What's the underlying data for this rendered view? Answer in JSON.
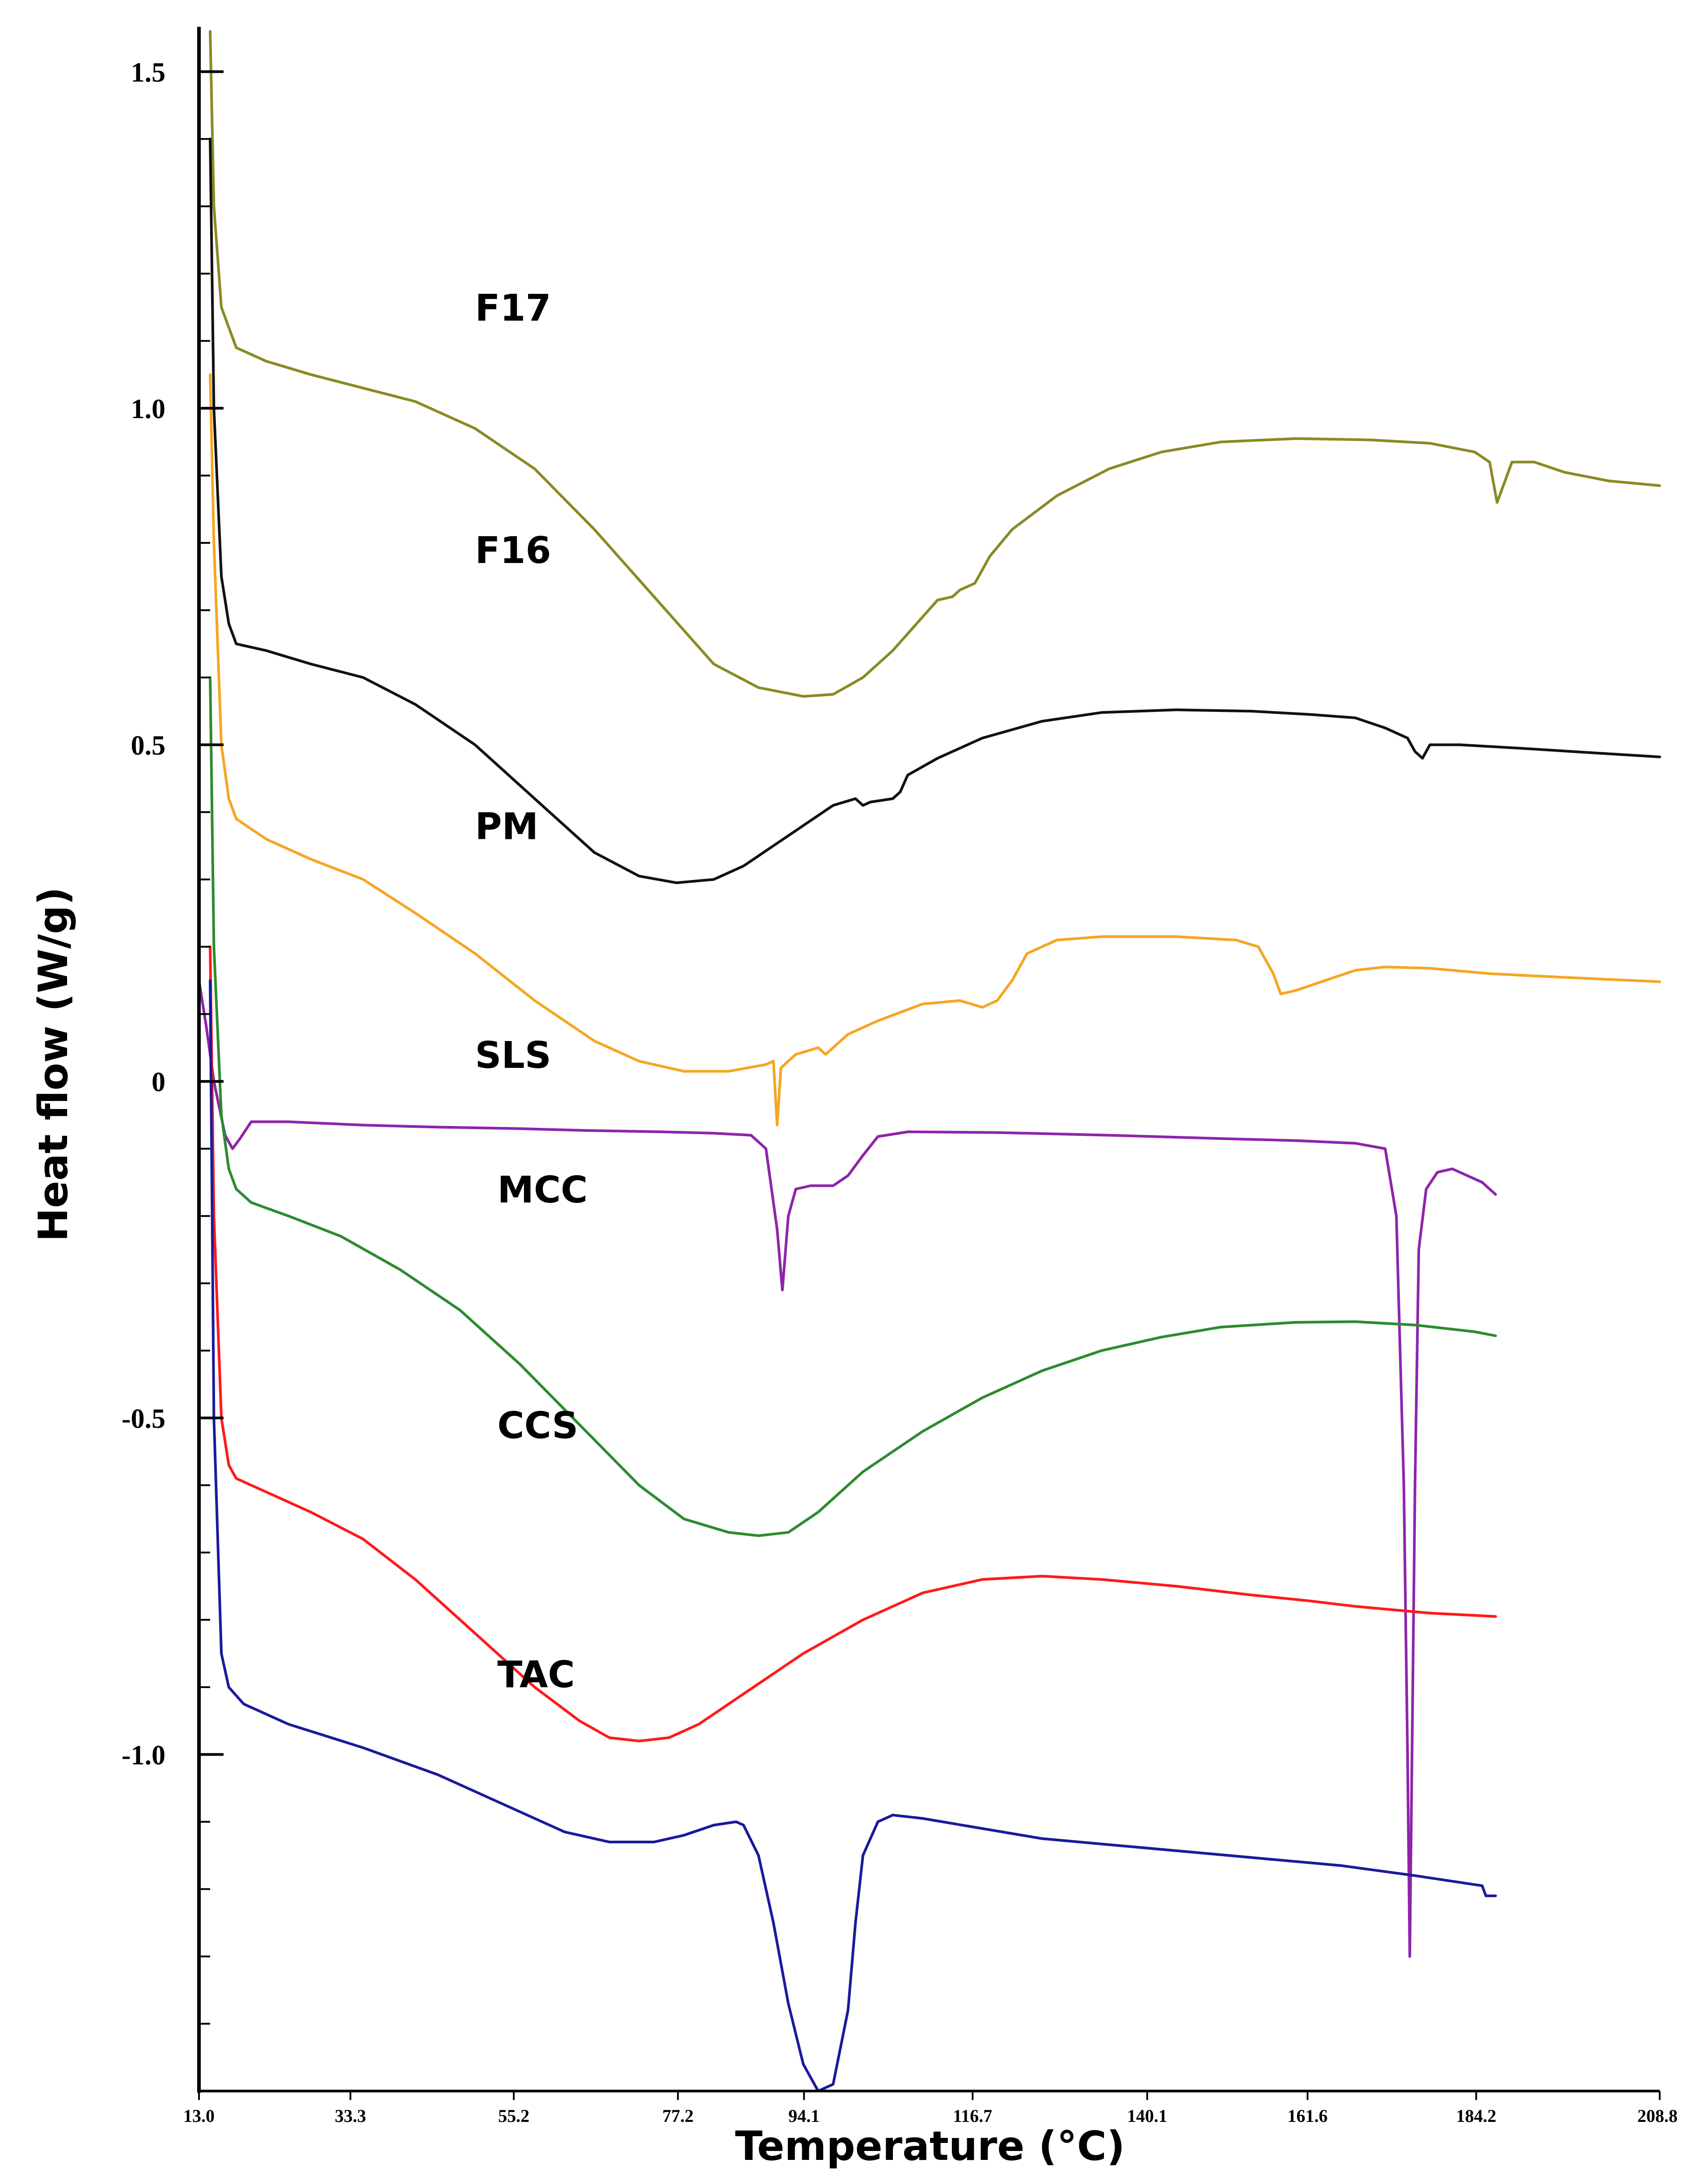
{
  "chart_data": {
    "type": "line",
    "title": "",
    "xlabel": "Temperature (°C)",
    "ylabel": "Heat flow (W/g)",
    "xlim": [
      13.0,
      208.8
    ],
    "ylim": [
      -1.5,
      1.56
    ],
    "x_ticks": [
      {
        "value": 13.0,
        "label": "13.0"
      },
      {
        "value": 33.3,
        "label": "33.3"
      },
      {
        "value": 55.2,
        "label": "55.2"
      },
      {
        "value": 77.2,
        "label": "77.2"
      },
      {
        "value": 94.1,
        "label": "94.1"
      },
      {
        "value": 116.7,
        "label": "116.7"
      },
      {
        "value": 140.1,
        "label": "140.1"
      },
      {
        "value": 161.6,
        "label": "161.6"
      },
      {
        "value": 184.2,
        "label": "184.2"
      },
      {
        "value": 208.8,
        "label": "208.8"
      }
    ],
    "y_ticks": [
      {
        "value": 1.5,
        "label": "1.5"
      },
      {
        "value": 1.0,
        "label": "1.0"
      },
      {
        "value": 0.5,
        "label": "0.5"
      },
      {
        "value": 0.0,
        "label": "0"
      },
      {
        "value": -0.5,
        "label": "-0.5"
      },
      {
        "value": -1.0,
        "label": "-1.0"
      }
    ],
    "y_minor_tick_step": 0.1,
    "series": [
      {
        "name": "F17",
        "color": "#8a8a24",
        "label_pos": {
          "x": 50,
          "y": 1.13
        },
        "points": [
          [
            14.5,
            1.56
          ],
          [
            15,
            1.3
          ],
          [
            16,
            1.15
          ],
          [
            18,
            1.09
          ],
          [
            22,
            1.07
          ],
          [
            28,
            1.05
          ],
          [
            35,
            1.03
          ],
          [
            42,
            1.01
          ],
          [
            50,
            0.97
          ],
          [
            58,
            0.91
          ],
          [
            66,
            0.82
          ],
          [
            74,
            0.72
          ],
          [
            82,
            0.62
          ],
          [
            88,
            0.585
          ],
          [
            94,
            0.572
          ],
          [
            98,
            0.575
          ],
          [
            102,
            0.6
          ],
          [
            106,
            0.64
          ],
          [
            110,
            0.69
          ],
          [
            112,
            0.715
          ],
          [
            114,
            0.72
          ],
          [
            115,
            0.73
          ],
          [
            117,
            0.74
          ],
          [
            119,
            0.78
          ],
          [
            122,
            0.82
          ],
          [
            128,
            0.87
          ],
          [
            135,
            0.91
          ],
          [
            142,
            0.935
          ],
          [
            150,
            0.95
          ],
          [
            160,
            0.955
          ],
          [
            170,
            0.953
          ],
          [
            178,
            0.948
          ],
          [
            184,
            0.935
          ],
          [
            186,
            0.92
          ],
          [
            187,
            0.86
          ],
          [
            188,
            0.89
          ],
          [
            189,
            0.92
          ],
          [
            192,
            0.92
          ],
          [
            196,
            0.905
          ],
          [
            202,
            0.892
          ],
          [
            208.8,
            0.885
          ]
        ]
      },
      {
        "name": "F16",
        "color": "#111111",
        "label_pos": {
          "x": 50,
          "y": 0.77
        },
        "points": [
          [
            14.5,
            1.4
          ],
          [
            15,
            1.0
          ],
          [
            16,
            0.75
          ],
          [
            17,
            0.68
          ],
          [
            18,
            0.65
          ],
          [
            22,
            0.64
          ],
          [
            28,
            0.62
          ],
          [
            35,
            0.6
          ],
          [
            42,
            0.56
          ],
          [
            50,
            0.5
          ],
          [
            58,
            0.42
          ],
          [
            66,
            0.34
          ],
          [
            72,
            0.305
          ],
          [
            77,
            0.295
          ],
          [
            82,
            0.3
          ],
          [
            86,
            0.32
          ],
          [
            90,
            0.35
          ],
          [
            94,
            0.38
          ],
          [
            98,
            0.41
          ],
          [
            101,
            0.42
          ],
          [
            102,
            0.41
          ],
          [
            103,
            0.415
          ],
          [
            106,
            0.42
          ],
          [
            107,
            0.43
          ],
          [
            108,
            0.455
          ],
          [
            112,
            0.48
          ],
          [
            118,
            0.51
          ],
          [
            126,
            0.535
          ],
          [
            134,
            0.548
          ],
          [
            144,
            0.552
          ],
          [
            154,
            0.55
          ],
          [
            162,
            0.545
          ],
          [
            168,
            0.54
          ],
          [
            172,
            0.525
          ],
          [
            175,
            0.51
          ],
          [
            176,
            0.49
          ],
          [
            177,
            0.48
          ],
          [
            178,
            0.5
          ],
          [
            182,
            0.5
          ],
          [
            190,
            0.495
          ],
          [
            200,
            0.488
          ],
          [
            208.8,
            0.482
          ]
        ]
      },
      {
        "name": "PM",
        "color": "#f5a623",
        "label_pos": {
          "x": 50,
          "y": 0.36
        },
        "points": [
          [
            14.5,
            1.05
          ],
          [
            15,
            0.8
          ],
          [
            16,
            0.5
          ],
          [
            17,
            0.42
          ],
          [
            18,
            0.39
          ],
          [
            22,
            0.36
          ],
          [
            28,
            0.33
          ],
          [
            35,
            0.3
          ],
          [
            42,
            0.25
          ],
          [
            50,
            0.19
          ],
          [
            58,
            0.12
          ],
          [
            66,
            0.06
          ],
          [
            72,
            0.03
          ],
          [
            78,
            0.015
          ],
          [
            84,
            0.015
          ],
          [
            89,
            0.025
          ],
          [
            90,
            0.03
          ],
          [
            90.5,
            -0.065
          ],
          [
            91,
            0.02
          ],
          [
            93,
            0.04
          ],
          [
            96,
            0.05
          ],
          [
            97,
            0.04
          ],
          [
            98,
            0.05
          ],
          [
            100,
            0.07
          ],
          [
            104,
            0.09
          ],
          [
            110,
            0.115
          ],
          [
            115,
            0.12
          ],
          [
            118,
            0.11
          ],
          [
            120,
            0.12
          ],
          [
            122,
            0.15
          ],
          [
            124,
            0.19
          ],
          [
            128,
            0.21
          ],
          [
            134,
            0.215
          ],
          [
            144,
            0.215
          ],
          [
            152,
            0.21
          ],
          [
            155,
            0.2
          ],
          [
            157,
            0.16
          ],
          [
            158,
            0.13
          ],
          [
            160,
            0.135
          ],
          [
            164,
            0.15
          ],
          [
            168,
            0.165
          ],
          [
            172,
            0.17
          ],
          [
            178,
            0.168
          ],
          [
            186,
            0.16
          ],
          [
            195,
            0.155
          ],
          [
            208.8,
            0.148
          ]
        ]
      },
      {
        "name": "SLS",
        "color": "#8e24aa",
        "label_pos": {
          "x": 50,
          "y": 0.02
        },
        "points": [
          [
            13,
            0.15
          ],
          [
            14,
            0.08
          ],
          [
            15,
            0.0
          ],
          [
            16.5,
            -0.08
          ],
          [
            17.5,
            -0.1
          ],
          [
            18.5,
            -0.085
          ],
          [
            20,
            -0.06
          ],
          [
            25,
            -0.06
          ],
          [
            35,
            -0.065
          ],
          [
            45,
            -0.068
          ],
          [
            55,
            -0.07
          ],
          [
            65,
            -0.073
          ],
          [
            75,
            -0.075
          ],
          [
            82,
            -0.077
          ],
          [
            87,
            -0.08
          ],
          [
            89,
            -0.1
          ],
          [
            90.5,
            -0.22
          ],
          [
            91.2,
            -0.31
          ],
          [
            92,
            -0.2
          ],
          [
            93,
            -0.16
          ],
          [
            95,
            -0.155
          ],
          [
            98,
            -0.155
          ],
          [
            100,
            -0.14
          ],
          [
            102,
            -0.11
          ],
          [
            104,
            -0.082
          ],
          [
            108,
            -0.075
          ],
          [
            120,
            -0.076
          ],
          [
            135,
            -0.08
          ],
          [
            150,
            -0.085
          ],
          [
            160,
            -0.088
          ],
          [
            168,
            -0.092
          ],
          [
            172,
            -0.1
          ],
          [
            173.5,
            -0.2
          ],
          [
            174.5,
            -0.6
          ],
          [
            175,
            -1.0
          ],
          [
            175.3,
            -1.3
          ],
          [
            175.6,
            -1.0
          ],
          [
            176,
            -0.6
          ],
          [
            176.5,
            -0.25
          ],
          [
            177.5,
            -0.16
          ],
          [
            179,
            -0.135
          ],
          [
            181,
            -0.13
          ],
          [
            183,
            -0.14
          ],
          [
            185,
            -0.15
          ],
          [
            186.8,
            -0.168
          ]
        ]
      },
      {
        "name": "MCC",
        "color": "#2e8b2e",
        "label_pos": {
          "x": 53,
          "y": -0.18
        },
        "points": [
          [
            14.5,
            0.6
          ],
          [
            15,
            0.2
          ],
          [
            16,
            -0.05
          ],
          [
            17,
            -0.13
          ],
          [
            18,
            -0.16
          ],
          [
            20,
            -0.18
          ],
          [
            25,
            -0.2
          ],
          [
            32,
            -0.23
          ],
          [
            40,
            -0.28
          ],
          [
            48,
            -0.34
          ],
          [
            56,
            -0.42
          ],
          [
            64,
            -0.51
          ],
          [
            72,
            -0.6
          ],
          [
            78,
            -0.65
          ],
          [
            84,
            -0.67
          ],
          [
            88,
            -0.675
          ],
          [
            92,
            -0.67
          ],
          [
            96,
            -0.64
          ],
          [
            102,
            -0.58
          ],
          [
            110,
            -0.52
          ],
          [
            118,
            -0.47
          ],
          [
            126,
            -0.43
          ],
          [
            134,
            -0.4
          ],
          [
            142,
            -0.38
          ],
          [
            150,
            -0.365
          ],
          [
            160,
            -0.358
          ],
          [
            168,
            -0.357
          ],
          [
            176,
            -0.362
          ],
          [
            184,
            -0.372
          ],
          [
            186.8,
            -0.378
          ]
        ]
      },
      {
        "name": "CCS",
        "color": "#ff1a1a",
        "label_pos": {
          "x": 53,
          "y": -0.53
        },
        "points": [
          [
            14.5,
            0.2
          ],
          [
            15,
            -0.2
          ],
          [
            16,
            -0.5
          ],
          [
            17,
            -0.57
          ],
          [
            18,
            -0.59
          ],
          [
            22,
            -0.61
          ],
          [
            28,
            -0.64
          ],
          [
            35,
            -0.68
          ],
          [
            42,
            -0.74
          ],
          [
            50,
            -0.82
          ],
          [
            58,
            -0.9
          ],
          [
            64,
            -0.95
          ],
          [
            68,
            -0.975
          ],
          [
            72,
            -0.98
          ],
          [
            76,
            -0.975
          ],
          [
            80,
            -0.955
          ],
          [
            86,
            -0.91
          ],
          [
            94,
            -0.85
          ],
          [
            102,
            -0.8
          ],
          [
            110,
            -0.76
          ],
          [
            118,
            -0.74
          ],
          [
            126,
            -0.735
          ],
          [
            134,
            -0.74
          ],
          [
            144,
            -0.75
          ],
          [
            154,
            -0.763
          ],
          [
            162,
            -0.772
          ],
          [
            168,
            -0.78
          ],
          [
            178,
            -0.79
          ],
          [
            186.8,
            -0.795
          ]
        ]
      },
      {
        "name": "TAC",
        "color": "#1a1a9c",
        "label_pos": {
          "x": 53,
          "y": -0.9
        },
        "points": [
          [
            14.5,
            0.15
          ],
          [
            15,
            -0.5
          ],
          [
            16,
            -0.85
          ],
          [
            17,
            -0.9
          ],
          [
            19,
            -0.925
          ],
          [
            25,
            -0.955
          ],
          [
            35,
            -0.99
          ],
          [
            45,
            -1.03
          ],
          [
            55,
            -1.08
          ],
          [
            62,
            -1.115
          ],
          [
            68,
            -1.13
          ],
          [
            74,
            -1.13
          ],
          [
            78,
            -1.12
          ],
          [
            82,
            -1.105
          ],
          [
            85,
            -1.1
          ],
          [
            86,
            -1.105
          ],
          [
            88,
            -1.15
          ],
          [
            90,
            -1.25
          ],
          [
            92,
            -1.37
          ],
          [
            94,
            -1.46
          ],
          [
            96,
            -1.5
          ],
          [
            98,
            -1.49
          ],
          [
            100,
            -1.38
          ],
          [
            101,
            -1.25
          ],
          [
            102,
            -1.15
          ],
          [
            104,
            -1.1
          ],
          [
            106,
            -1.09
          ],
          [
            110,
            -1.095
          ],
          [
            118,
            -1.11
          ],
          [
            126,
            -1.125
          ],
          [
            136,
            -1.135
          ],
          [
            146,
            -1.145
          ],
          [
            156,
            -1.155
          ],
          [
            166,
            -1.165
          ],
          [
            176,
            -1.18
          ],
          [
            185,
            -1.195
          ],
          [
            185.5,
            -1.21
          ],
          [
            186.8,
            -1.21
          ]
        ]
      }
    ]
  }
}
